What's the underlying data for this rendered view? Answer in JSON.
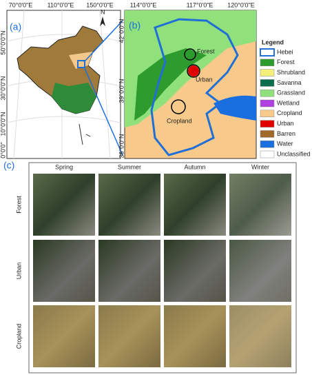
{
  "panel_a": {
    "label": "(a)",
    "north": "N",
    "lon_labels": [
      "70°0'0\"E",
      "110°0'0\"E",
      "150°0'0\"E"
    ],
    "lat_labels": [
      "50°0'0\"N",
      "30°0'0\"N",
      "10°0'0\"N",
      "0°0'0\""
    ]
  },
  "panel_b": {
    "label": "(b)",
    "lon_labels": [
      "114°0'0\"E",
      "117°0'0\"E",
      "120°0'0\"E"
    ],
    "lat_labels": [
      "42°0'0\"N",
      "39°0'0\"N",
      "36°0'0\"N"
    ],
    "sites": [
      "Forest",
      "Urban",
      "Cropland"
    ]
  },
  "legend": {
    "title": "Legend",
    "items": [
      {
        "name": "Hebei",
        "color": "#1f6fd6",
        "outline": true
      },
      {
        "name": "Forest",
        "color": "#2e9b2e"
      },
      {
        "name": "Shrubland",
        "color": "#f5f07a"
      },
      {
        "name": "Savanna",
        "color": "#0b6e4b"
      },
      {
        "name": "Grassland",
        "color": "#90e07c"
      },
      {
        "name": "Wetland",
        "color": "#b040e0"
      },
      {
        "name": "Cropland",
        "color": "#f7c98b"
      },
      {
        "name": "Urban",
        "color": "#e00000"
      },
      {
        "name": "Barren",
        "color": "#a0692a"
      },
      {
        "name": "Water",
        "color": "#1a6fe0"
      },
      {
        "name": "Unclassified",
        "color": "#ffffff"
      }
    ]
  },
  "panel_c": {
    "label": "(c)",
    "seasons": [
      "Spring",
      "Summer",
      "Autumn",
      "Winter"
    ],
    "rows": [
      "Forest",
      "Urban",
      "Cropland"
    ]
  }
}
